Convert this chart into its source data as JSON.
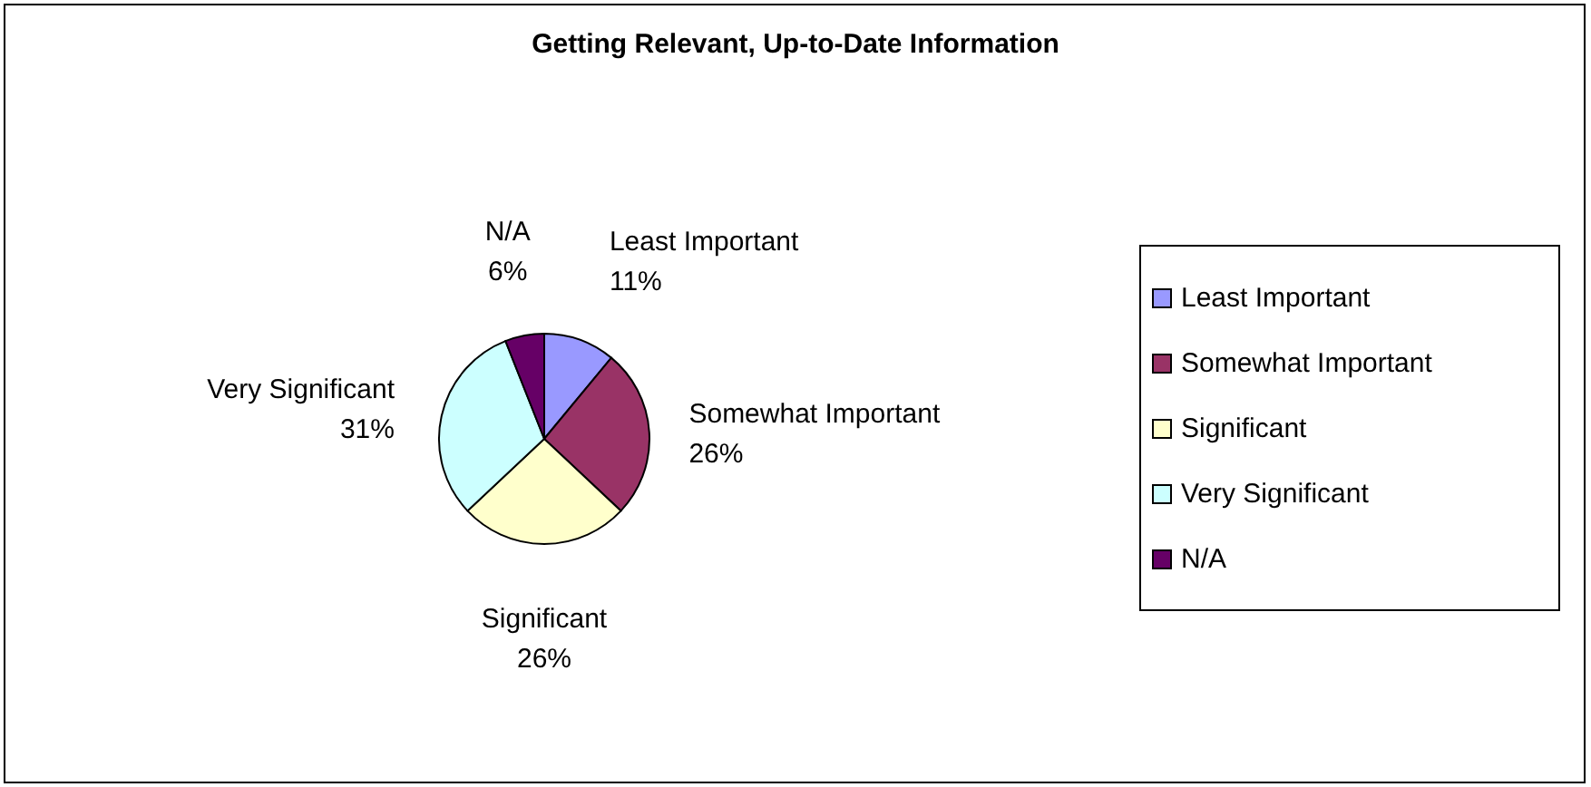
{
  "chart_data": {
    "type": "pie",
    "title": "Getting Relevant, Up-to-Date Information",
    "categories": [
      "Least Important",
      "Somewhat Important",
      "Significant",
      "Very Significant",
      "N/A"
    ],
    "values": [
      11,
      26,
      26,
      31,
      6
    ],
    "value_labels": [
      "11%",
      "26%",
      "26%",
      "31%",
      "6%"
    ],
    "colors": [
      "#9999ff",
      "#993366",
      "#ffffcc",
      "#ccffff",
      "#660066"
    ],
    "legend": "right"
  }
}
